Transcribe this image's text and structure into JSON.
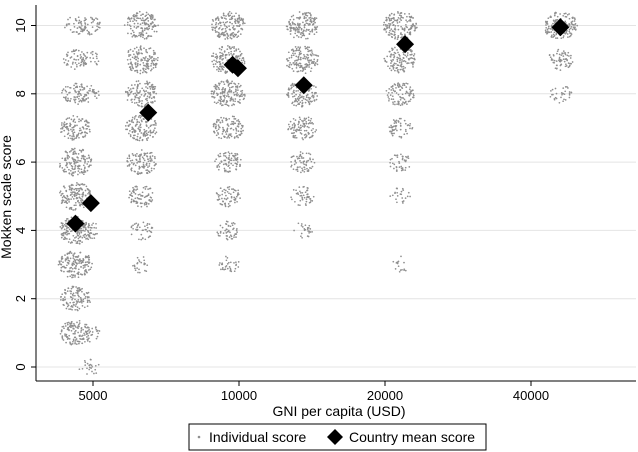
{
  "chart_data": {
    "type": "scatter",
    "title": "",
    "xlabel": "GNI per capita (USD)",
    "ylabel": "Mokken scale score",
    "x_scale": "categorical-log",
    "x_ticks": [
      "5000",
      "10000",
      "20000",
      "40000"
    ],
    "y_ticks": [
      "0",
      "2",
      "4",
      "6",
      "8",
      "10"
    ],
    "ylim": [
      -0.3,
      10.5
    ],
    "grid": "horizontal",
    "legend_position": "bottom",
    "colors": {
      "individual": "#8f8f8f",
      "mean": "#000000",
      "grid": "#e4e4e4",
      "axis": "#000000"
    },
    "series": [
      {
        "name": "Individual score",
        "marker": "dot",
        "groups": [
          {
            "x": 4600,
            "distribution": [
              [
                1.0,
                0.7
              ],
              [
                2.0,
                0.7
              ],
              [
                3.0,
                1.0
              ],
              [
                4.0,
                1.0
              ],
              [
                5.0,
                1.0
              ],
              [
                6.0,
                0.9
              ],
              [
                7.0,
                0.7
              ],
              [
                8.0,
                0.5
              ],
              [
                9.0,
                0.3
              ],
              [
                10.0,
                0.2
              ]
            ]
          },
          {
            "x": 4900,
            "distribution": [
              [
                0.0,
                0.15
              ],
              [
                1.0,
                0.2
              ],
              [
                4.0,
                0.2
              ],
              [
                8.0,
                0.2
              ],
              [
                9.0,
                0.2
              ],
              [
                10.0,
                0.3
              ]
            ]
          },
          {
            "x": 6300,
            "distribution": [
              [
                3.0,
                0.15
              ],
              [
                4.0,
                0.25
              ],
              [
                5.0,
                0.5
              ],
              [
                6.0,
                0.7
              ],
              [
                7.0,
                0.8
              ],
              [
                8.0,
                0.8
              ],
              [
                9.0,
                0.9
              ],
              [
                10.0,
                0.9
              ]
            ]
          },
          {
            "x": 9500,
            "distribution": [
              [
                3.0,
                0.2
              ],
              [
                4.0,
                0.3
              ],
              [
                5.0,
                0.4
              ],
              [
                6.0,
                0.5
              ],
              [
                7.0,
                0.7
              ],
              [
                8.0,
                1.0
              ],
              [
                9.0,
                1.0
              ],
              [
                10.0,
                1.0
              ]
            ]
          },
          {
            "x": 13500,
            "distribution": [
              [
                4.0,
                0.15
              ],
              [
                5.0,
                0.3
              ],
              [
                6.0,
                0.4
              ],
              [
                7.0,
                0.6
              ],
              [
                8.0,
                0.8
              ],
              [
                9.0,
                0.9
              ],
              [
                10.0,
                0.9
              ]
            ]
          },
          {
            "x": 21500,
            "distribution": [
              [
                3.0,
                0.1
              ],
              [
                5.0,
                0.15
              ],
              [
                6.0,
                0.25
              ],
              [
                7.0,
                0.35
              ],
              [
                8.0,
                0.6
              ],
              [
                9.0,
                0.8
              ],
              [
                10.0,
                1.0
              ]
            ]
          },
          {
            "x": 46000,
            "distribution": [
              [
                8.0,
                0.2
              ],
              [
                9.0,
                0.4
              ],
              [
                10.0,
                1.0
              ]
            ]
          }
        ]
      },
      {
        "name": "Country mean score",
        "marker": "diamond",
        "points": [
          {
            "x": 4600,
            "y": 4.2
          },
          {
            "x": 4950,
            "y": 4.8
          },
          {
            "x": 6500,
            "y": 7.45
          },
          {
            "x": 9700,
            "y": 8.85
          },
          {
            "x": 9950,
            "y": 8.75
          },
          {
            "x": 13600,
            "y": 8.25
          },
          {
            "x": 22000,
            "y": 9.45
          },
          {
            "x": 46000,
            "y": 9.95
          }
        ]
      }
    ],
    "legend": {
      "individual_label": "Individual score",
      "mean_label": "Country mean score"
    }
  }
}
